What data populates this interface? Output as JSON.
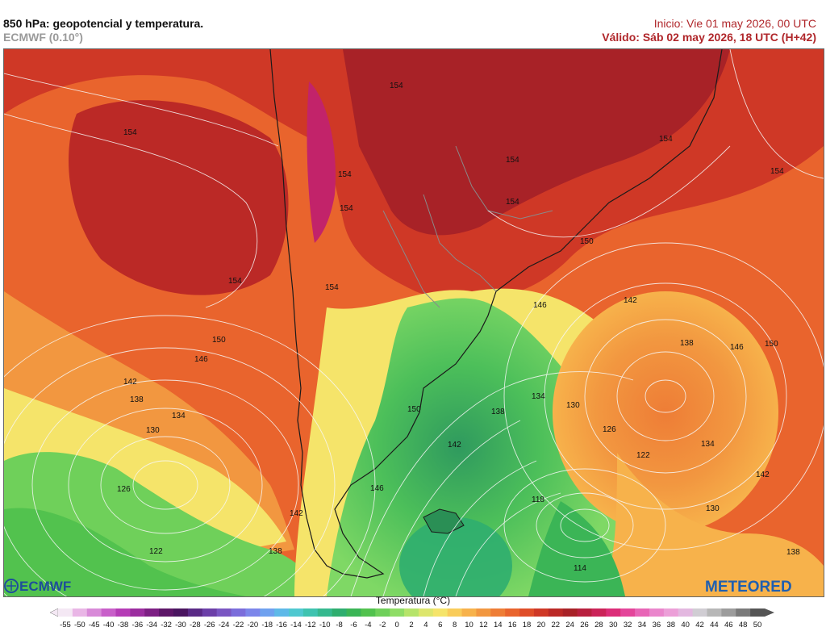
{
  "header": {
    "title": "850 hPa: geopotencial y temperatura.",
    "model": "ECMWF (0.10°)",
    "init": "Inicio: Vie 01 may 2026, 00 UTC",
    "valid": "Válido: Sáb 02 may 2026, 18 UTC (H+42)"
  },
  "contour_labels": [
    "154",
    "154",
    "154",
    "154",
    "154",
    "154",
    "154",
    "154",
    "154",
    "150",
    "150",
    "150",
    "150",
    "146",
    "146",
    "146",
    "146",
    "142",
    "142",
    "142",
    "142",
    "142",
    "138",
    "138",
    "138",
    "138",
    "138",
    "134",
    "134",
    "134",
    "130",
    "130",
    "130",
    "126",
    "126",
    "122",
    "122",
    "118",
    "114"
  ],
  "legend": {
    "title": "Temperatura (°C)",
    "ticks": [
      "-55",
      "-50",
      "-45",
      "-40",
      "-38",
      "-36",
      "-34",
      "-32",
      "-30",
      "-28",
      "-26",
      "-24",
      "-22",
      "-20",
      "-18",
      "-16",
      "-14",
      "-12",
      "-10",
      "-8",
      "-6",
      "-4",
      "-2",
      "0",
      "2",
      "4",
      "6",
      "8",
      "10",
      "12",
      "14",
      "16",
      "18",
      "20",
      "22",
      "24",
      "26",
      "28",
      "30",
      "32",
      "34",
      "36",
      "38",
      "40",
      "42",
      "44",
      "46",
      "48",
      "50"
    ],
    "colors": [
      "#f4e8f4",
      "#e9b6e6",
      "#d88ad8",
      "#c85fc9",
      "#b53cb6",
      "#9b2d9f",
      "#7d1f84",
      "#5d1668",
      "#4a1560",
      "#5a2a86",
      "#6c3fa8",
      "#7a56c2",
      "#7b6ddb",
      "#7c86ea",
      "#6fa1ef",
      "#5eb9e8",
      "#4fc8d0",
      "#3fc3b0",
      "#36b98f",
      "#2fae6f",
      "#3bb556",
      "#52c24e",
      "#6fd05a",
      "#8fdd66",
      "#b6e46a",
      "#dde66d",
      "#f5e46a",
      "#f9cc5a",
      "#f7b24b",
      "#f29740",
      "#ee7d36",
      "#e9642d",
      "#df4d28",
      "#cf3826",
      "#bb2926",
      "#a82227",
      "#b8203e",
      "#cb2358",
      "#dc2d78",
      "#e4459a",
      "#e865b6",
      "#ea86cc",
      "#ec9fd8",
      "#e3b8e0",
      "#d0cdd3",
      "#b7b7b7",
      "#9c9c9c",
      "#7a7a7a",
      "#555555"
    ]
  },
  "logos": {
    "ecmwf": "ECMWF",
    "meteored": "METEORED"
  }
}
